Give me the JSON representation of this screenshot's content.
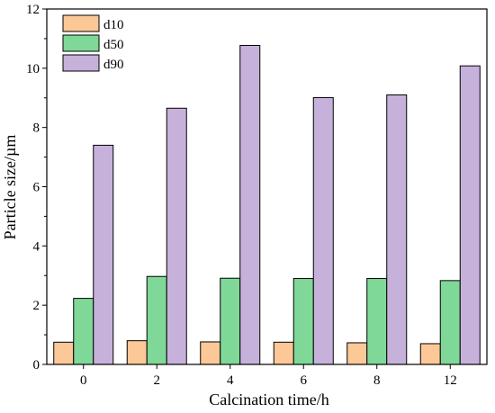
{
  "chart_data": {
    "type": "bar",
    "categories": [
      "0",
      "2",
      "4",
      "6",
      "8",
      "12"
    ],
    "series": [
      {
        "name": "d10",
        "color": "#fcc897",
        "values": [
          0.75,
          0.8,
          0.76,
          0.75,
          0.73,
          0.7
        ]
      },
      {
        "name": "d50",
        "color": "#7fd898",
        "values": [
          2.23,
          2.97,
          2.91,
          2.9,
          2.9,
          2.83
        ]
      },
      {
        "name": "d90",
        "color": "#c6b1da",
        "values": [
          7.4,
          8.65,
          10.77,
          9.01,
          9.1,
          10.08
        ]
      }
    ],
    "xlabel": "Calcination time/h",
    "ylabel": "Particle size/µm",
    "ylim": [
      0,
      12
    ],
    "yticks": [
      0,
      2,
      4,
      6,
      8,
      10,
      12
    ],
    "grid": false,
    "legend_position": "top-left"
  }
}
